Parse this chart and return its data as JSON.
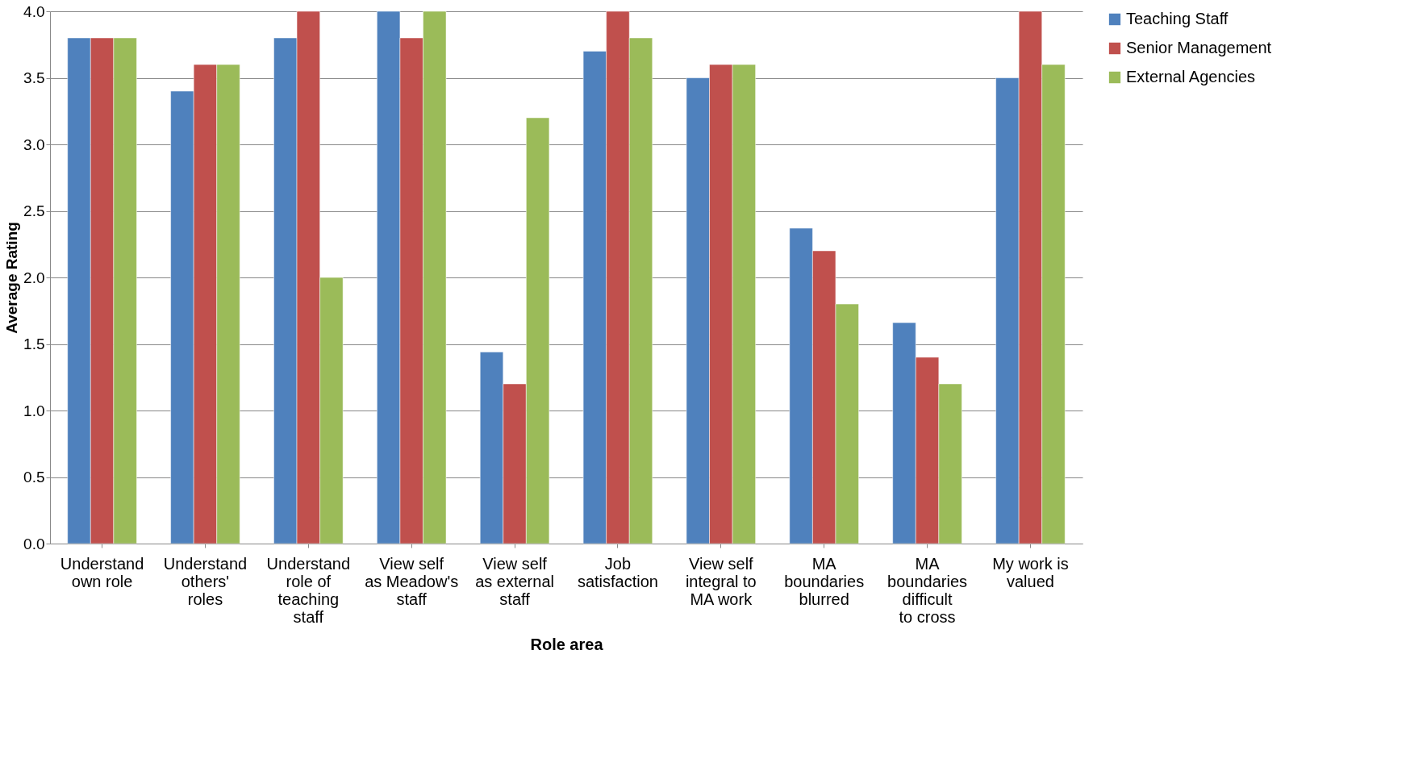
{
  "chart_data": {
    "type": "bar",
    "xlabel": "Role area",
    "ylabel": "Average Rating",
    "categories": [
      "Understand own role",
      "Understand others' roles",
      "Understand role of teaching staff",
      "View self as Meadow's staff",
      "View self as external staff",
      "Job satisfaction",
      "View self integral to MA work",
      "MA boundaries blurred",
      "MA boundaries difficult to cross",
      "My work is valued"
    ],
    "series": [
      {
        "name": "Teaching Staff",
        "color": "#4f81bd",
        "values": [
          3.8,
          3.4,
          3.8,
          4.0,
          1.44,
          3.7,
          3.5,
          2.37,
          1.66,
          3.5
        ]
      },
      {
        "name": "Senior Management",
        "color": "#c0504d",
        "values": [
          3.8,
          3.6,
          4.0,
          3.8,
          1.2,
          4.0,
          3.6,
          2.2,
          1.4,
          4.0
        ]
      },
      {
        "name": "External Agencies",
        "color": "#9bbb59",
        "values": [
          3.8,
          3.6,
          2.0,
          4.0,
          3.2,
          3.8,
          3.6,
          1.8,
          1.2,
          3.6
        ]
      }
    ],
    "ylim": [
      0,
      4
    ],
    "yticks": [
      {
        "value": 0,
        "label": "0.0"
      },
      {
        "value": 0.5,
        "label": "0.5"
      },
      {
        "value": 1,
        "label": "1.0"
      },
      {
        "value": 1.5,
        "label": "1.5"
      },
      {
        "value": 2,
        "label": "2.0"
      },
      {
        "value": 2.5,
        "label": "2.5"
      },
      {
        "value": 3,
        "label": "3.0"
      },
      {
        "value": 3.5,
        "label": "3.5"
      },
      {
        "value": 4,
        "label": "4.0"
      }
    ],
    "grid": "y",
    "legend": "right"
  }
}
